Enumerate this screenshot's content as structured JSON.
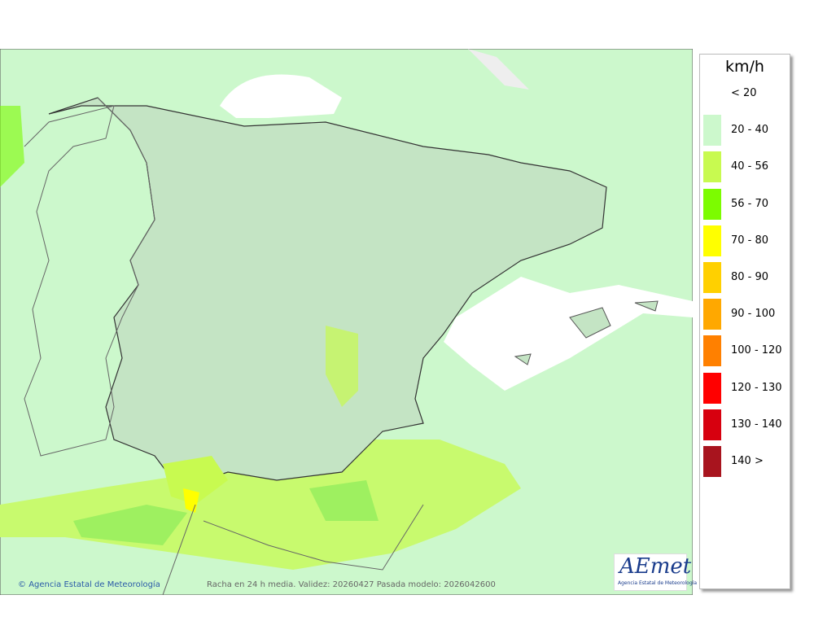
{
  "legend": {
    "title": "km/h",
    "items": [
      {
        "label": "< 20",
        "color": "#ffffff"
      },
      {
        "label": "20 - 40",
        "color": "#ccf8cc"
      },
      {
        "label": "40 - 56",
        "color": "#c8fa50"
      },
      {
        "label": "56 - 70",
        "color": "#7cfc00"
      },
      {
        "label": "70 - 80",
        "color": "#ffff00"
      },
      {
        "label": "80 - 90",
        "color": "#ffd000"
      },
      {
        "label": "90 - 100",
        "color": "#ffa800"
      },
      {
        "label": "100 - 120",
        "color": "#ff8000"
      },
      {
        "label": "120 - 130",
        "color": "#ff0000"
      },
      {
        "label": "130 - 140",
        "color": "#d7000f"
      },
      {
        "label": "140 >",
        "color": "#a8141e"
      }
    ]
  },
  "footer": {
    "agency": "Agencia Estatal de Meteorología",
    "caption": "Racha en 24 h media. Validez: 20260427 Pasada modelo: 2026042600"
  },
  "logo": {
    "text": "AEmet",
    "subtitle": "Agencia Estatal de Meteorología"
  }
}
